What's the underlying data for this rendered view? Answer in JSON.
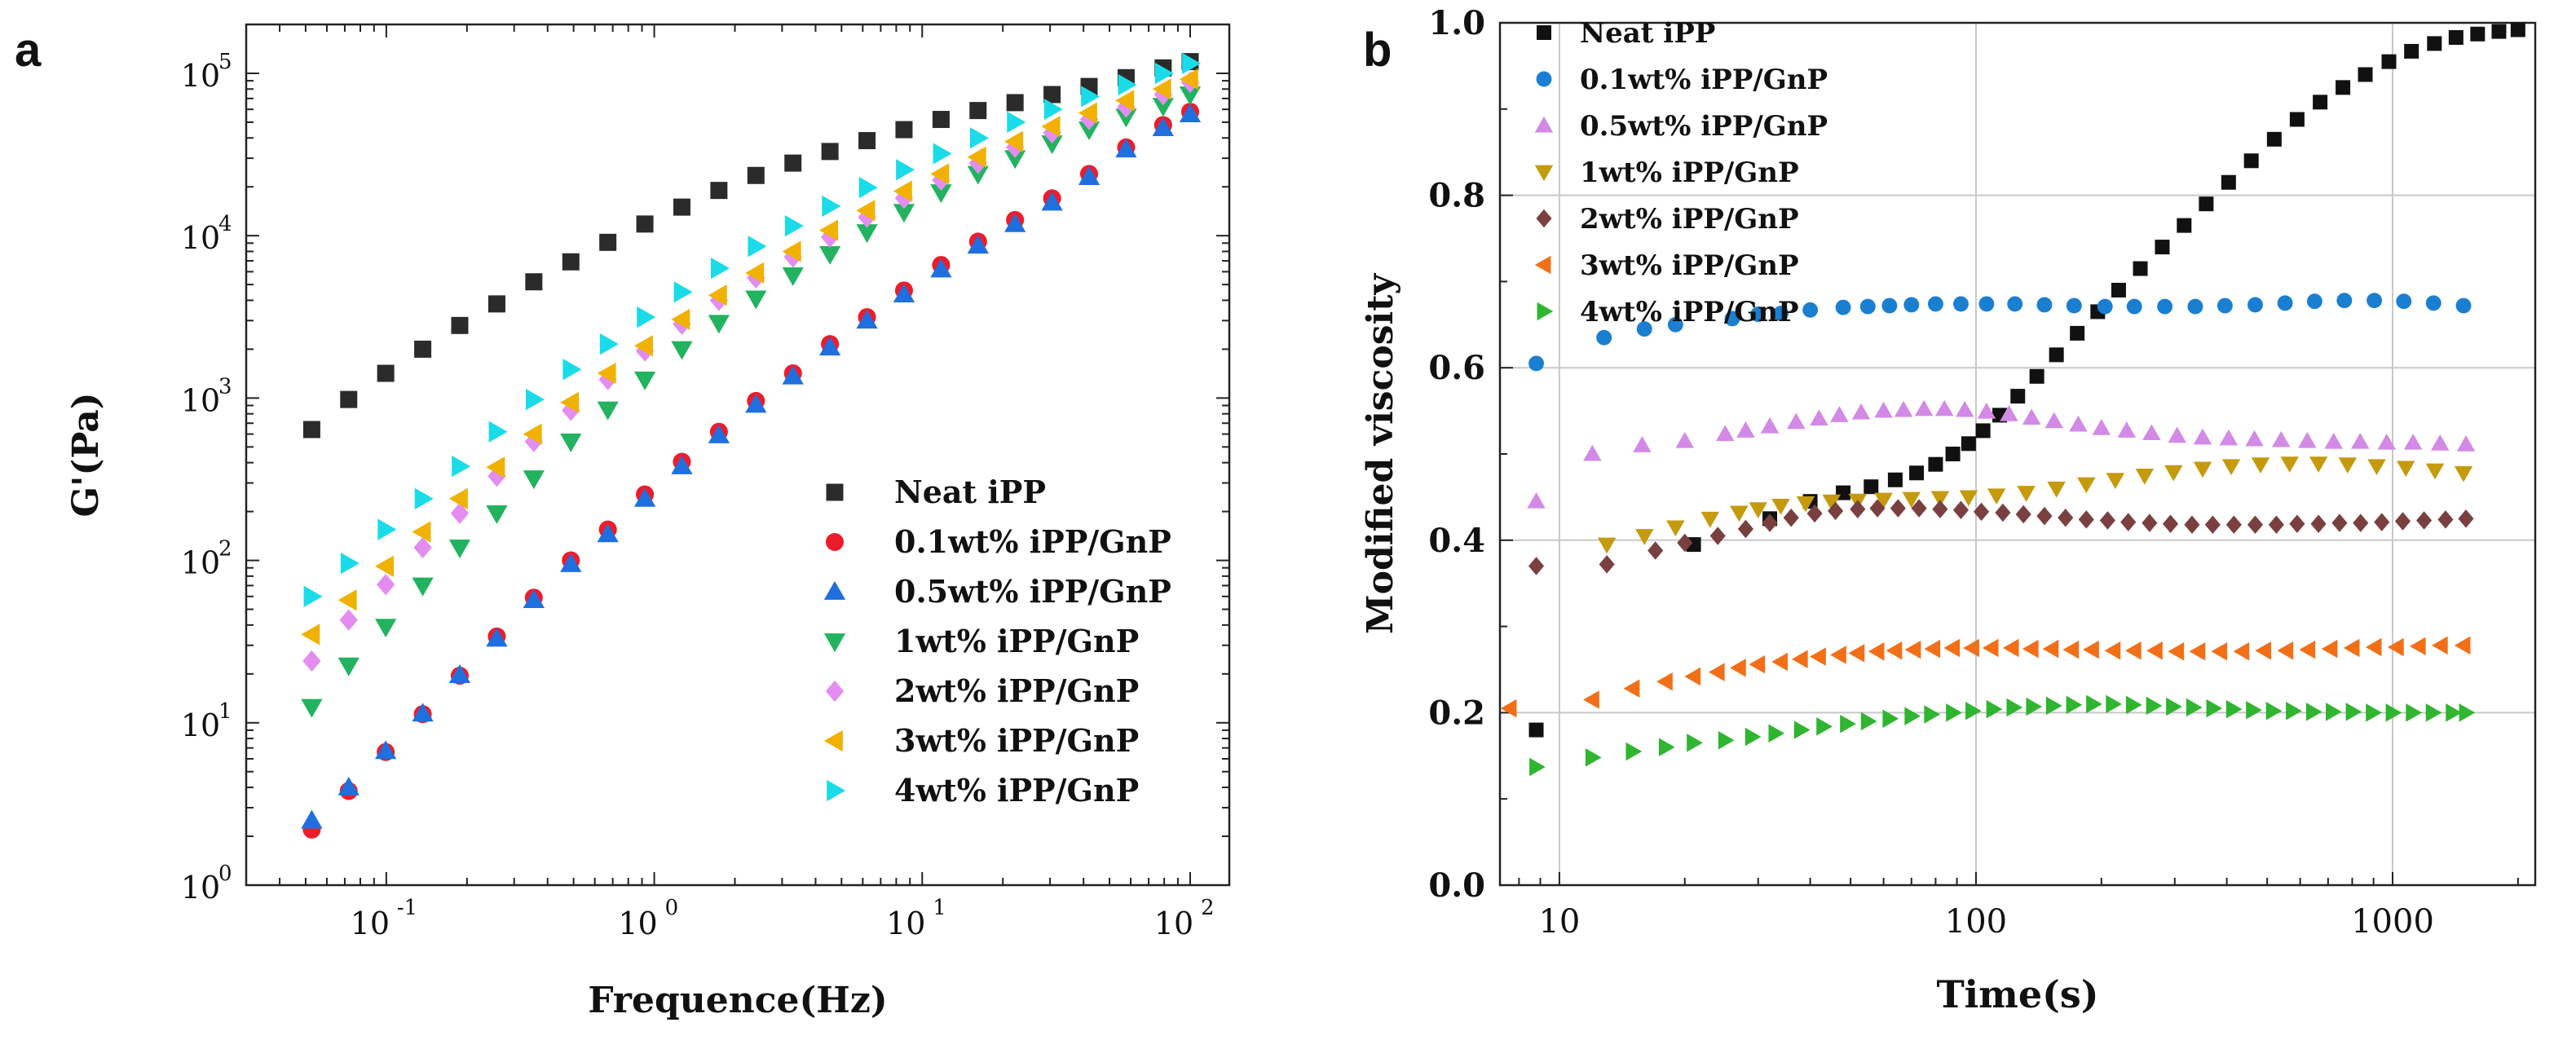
{
  "figure": {
    "panel_a_letter": "a",
    "panel_b_letter": "b"
  },
  "styles": [
    {
      "shape": "square",
      "color": "#2b2b2b"
    },
    {
      "shape": "circle",
      "color": "#ee1c2b"
    },
    {
      "shape": "tri-up",
      "color": "#1f6fde"
    },
    {
      "shape": "tri-down",
      "color": "#21b35f"
    },
    {
      "shape": "diamond",
      "color": "#e48df0"
    },
    {
      "shape": "tri-left",
      "color": "#f1b100"
    },
    {
      "shape": "tri-right",
      "color": "#19dce8"
    }
  ],
  "styles_b": [
    {
      "shape": "square",
      "color": "#111111"
    },
    {
      "shape": "circle",
      "color": "#1b7fd1"
    },
    {
      "shape": "tri-up",
      "color": "#d28ae6"
    },
    {
      "shape": "tri-down",
      "color": "#c59a0d"
    },
    {
      "shape": "diamond",
      "color": "#7a4040"
    },
    {
      "shape": "tri-left",
      "color": "#f26f18"
    },
    {
      "shape": "tri-right",
      "color": "#2fb52f"
    }
  ],
  "chart_data": [
    {
      "type": "scatter",
      "panel": "a",
      "title": "",
      "xlabel": "Frequence(Hz)",
      "ylabel": "G'(Pa)",
      "xscale": "log",
      "yscale": "log",
      "xlim": [
        0.03,
        140
      ],
      "ylim": [
        1,
        200000
      ],
      "xticks": [
        {
          "base": "10",
          "exp": "-1"
        },
        {
          "base": "10",
          "exp": "0"
        },
        {
          "base": "10",
          "exp": "1"
        },
        {
          "base": "10",
          "exp": "2"
        }
      ],
      "yticks": [
        {
          "base": "10",
          "exp": "0"
        },
        {
          "base": "10",
          "exp": "1"
        },
        {
          "base": "10",
          "exp": "2"
        },
        {
          "base": "10",
          "exp": "3"
        },
        {
          "base": "10",
          "exp": "4"
        },
        {
          "base": "10",
          "exp": "5"
        }
      ],
      "grid": false,
      "legend_position": "lower-right",
      "x": [
        0.0527,
        0.0724,
        0.0995,
        0.1368,
        0.188,
        0.2585,
        0.3553,
        0.4884,
        0.6713,
        0.9227,
        1.268,
        1.743,
        2.396,
        3.294,
        4.527,
        6.223,
        8.553,
        11.76,
        16.16,
        22.21,
        30.53,
        41.96,
        57.68,
        79.28,
        100
      ],
      "series": [
        {
          "name": "Neat iPP",
          "values": [
            640,
            980,
            1420,
            2000,
            2800,
            3800,
            5200,
            6900,
            9100,
            11800,
            15000,
            19000,
            23500,
            28000,
            33000,
            38500,
            45000,
            52000,
            59000,
            66000,
            74000,
            83000,
            94000,
            108000,
            118000
          ]
        },
        {
          "name": "0.1wt% iPP/GnP",
          "values": [
            2.2,
            3.8,
            6.6,
            11.3,
            19.5,
            34,
            59,
            100,
            155,
            255,
            405,
            620,
            960,
            1420,
            2150,
            3150,
            4600,
            6600,
            9200,
            12500,
            17000,
            24000,
            35000,
            48000,
            58000
          ]
        },
        {
          "name": "0.5wt% iPP/GnP",
          "values": [
            2.5,
            4.0,
            6.7,
            11.4,
            19.7,
            33,
            57,
            95,
            145,
            240,
            380,
            590,
            910,
            1360,
            2050,
            3000,
            4350,
            6200,
            8700,
            11800,
            16000,
            23000,
            34000,
            46000,
            56000
          ]
        },
        {
          "name": "1wt% iPP/GnP",
          "values": [
            12.5,
            22.5,
            39,
            70,
            120,
            195,
            320,
            540,
            850,
            1300,
            2000,
            2900,
            4100,
            5700,
            7700,
            10500,
            14000,
            18500,
            24000,
            30000,
            37000,
            45000,
            54000,
            63000,
            74000
          ]
        },
        {
          "name": "2wt% iPP/GnP",
          "values": [
            24,
            43,
            71,
            120,
            195,
            330,
            540,
            840,
            1300,
            1950,
            2850,
            4000,
            5500,
            7400,
            9800,
            13000,
            17000,
            22000,
            28000,
            35000,
            43000,
            52000,
            62000,
            74000,
            88000
          ]
        },
        {
          "name": "3wt% iPP/GnP",
          "values": [
            35,
            57,
            92,
            150,
            240,
            375,
            600,
            940,
            1420,
            2100,
            3050,
            4300,
            5900,
            8000,
            10800,
            14300,
            18800,
            24000,
            30500,
            38000,
            47000,
            57000,
            68000,
            80000,
            92000
          ]
        },
        {
          "name": "4wt% iPP/GnP",
          "values": [
            60,
            96,
            155,
            240,
            380,
            620,
            980,
            1500,
            2150,
            3150,
            4500,
            6300,
            8600,
            11500,
            15200,
            19800,
            25500,
            32000,
            40000,
            50000,
            60000,
            72000,
            85000,
            100000,
            115000
          ]
        }
      ]
    },
    {
      "type": "scatter",
      "panel": "b",
      "title": "",
      "xlabel": "Time(s)",
      "ylabel": "Modified viscosity",
      "xscale": "log",
      "yscale": "linear",
      "xlim": [
        7.2,
        2200
      ],
      "ylim": [
        0.0,
        1.0
      ],
      "xticks": [
        {
          "value": 10,
          "label": "10"
        },
        {
          "value": 100,
          "label": "100"
        },
        {
          "value": 1000,
          "label": "1000"
        }
      ],
      "yticks": [
        {
          "value": 0.0,
          "label": "0.0"
        },
        {
          "value": 0.2,
          "label": "0.2"
        },
        {
          "value": 0.4,
          "label": "0.4"
        },
        {
          "value": 0.6,
          "label": "0.6"
        },
        {
          "value": 0.8,
          "label": "0.8"
        },
        {
          "value": 1.0,
          "label": "1.0"
        }
      ],
      "grid": true,
      "legend_position": "top-left",
      "series": [
        {
          "name": "Neat iPP",
          "x": [
            8.8,
            21,
            32,
            40,
            48,
            56,
            64,
            72,
            80,
            88,
            96,
            104,
            114,
            126,
            140,
            156,
            175,
            196,
            220,
            248,
            280,
            316,
            357,
            404,
            458,
            520,
            590,
            670,
            760,
            860,
            980,
            1110,
            1260,
            1420,
            1600,
            1800,
            2000
          ],
          "y": [
            0.18,
            0.395,
            0.425,
            0.445,
            0.455,
            0.462,
            0.47,
            0.478,
            0.488,
            0.5,
            0.512,
            0.527,
            0.545,
            0.567,
            0.59,
            0.615,
            0.64,
            0.665,
            0.69,
            0.715,
            0.74,
            0.765,
            0.79,
            0.815,
            0.84,
            0.865,
            0.888,
            0.908,
            0.925,
            0.94,
            0.955,
            0.967,
            0.976,
            0.983,
            0.987,
            0.99,
            0.992
          ]
        },
        {
          "name": "0.1wt% iPP/GnP",
          "x": [
            8.8,
            12.8,
            16,
            19,
            26,
            30,
            34,
            40,
            48,
            55,
            62,
            70,
            80,
            92,
            106,
            124,
            146,
            172,
            204,
            240,
            284,
            336,
            396,
            468,
            552,
            650,
            766,
            904,
            1064,
            1254,
            1480
          ],
          "y": [
            0.605,
            0.635,
            0.645,
            0.65,
            0.657,
            0.662,
            0.663,
            0.667,
            0.67,
            0.671,
            0.672,
            0.673,
            0.674,
            0.674,
            0.674,
            0.674,
            0.673,
            0.672,
            0.671,
            0.671,
            0.671,
            0.671,
            0.672,
            0.673,
            0.675,
            0.677,
            0.678,
            0.678,
            0.677,
            0.675,
            0.672
          ]
        },
        {
          "name": "0.5wt% iPP/GnP",
          "x": [
            8.8,
            12,
            15.8,
            20,
            25,
            28,
            32,
            37,
            42,
            47,
            53,
            60,
            67,
            75,
            84,
            94,
            106,
            120,
            136,
            154,
            176,
            200,
            230,
            264,
            304,
            350,
            404,
            466,
            540,
            624,
            722,
            836,
            968,
            1120,
            1300,
            1500
          ],
          "y": [
            0.445,
            0.5,
            0.51,
            0.515,
            0.523,
            0.527,
            0.532,
            0.537,
            0.541,
            0.545,
            0.548,
            0.55,
            0.551,
            0.552,
            0.552,
            0.551,
            0.549,
            0.546,
            0.542,
            0.538,
            0.534,
            0.53,
            0.527,
            0.524,
            0.521,
            0.519,
            0.518,
            0.517,
            0.516,
            0.515,
            0.514,
            0.514,
            0.513,
            0.513,
            0.512,
            0.511
          ]
        },
        {
          "name": "1wt% iPP/GnP",
          "x": [
            13,
            16,
            19,
            23,
            27,
            30,
            34,
            39,
            45,
            52,
            60,
            70,
            82,
            96,
            112,
            132,
            156,
            184,
            216,
            254,
            298,
            350,
            410,
            482,
            566,
            664,
            780,
            916,
            1076,
            1264,
            1480
          ],
          "y": [
            0.395,
            0.405,
            0.415,
            0.425,
            0.432,
            0.436,
            0.44,
            0.443,
            0.445,
            0.446,
            0.447,
            0.448,
            0.449,
            0.45,
            0.452,
            0.455,
            0.46,
            0.465,
            0.47,
            0.475,
            0.479,
            0.483,
            0.486,
            0.488,
            0.489,
            0.489,
            0.488,
            0.486,
            0.484,
            0.481,
            0.478
          ]
        },
        {
          "name": "2wt% iPP/GnP",
          "x": [
            8.8,
            13,
            17,
            20,
            24,
            28,
            32,
            36,
            41,
            46,
            52,
            58,
            65,
            73,
            82,
            92,
            103,
            116,
            130,
            146,
            164,
            184,
            207,
            232,
            261,
            293,
            330,
            370,
            416,
            468,
            526,
            590,
            664,
            746,
            838,
            942,
            1058,
            1190,
            1340,
            1500
          ],
          "y": [
            0.37,
            0.372,
            0.388,
            0.397,
            0.405,
            0.413,
            0.42,
            0.426,
            0.431,
            0.434,
            0.436,
            0.437,
            0.437,
            0.437,
            0.436,
            0.435,
            0.433,
            0.432,
            0.43,
            0.428,
            0.426,
            0.424,
            0.423,
            0.421,
            0.42,
            0.419,
            0.418,
            0.418,
            0.418,
            0.418,
            0.418,
            0.419,
            0.419,
            0.42,
            0.42,
            0.421,
            0.422,
            0.423,
            0.424,
            0.425
          ]
        },
        {
          "name": "3wt% iPP/GnP",
          "x": [
            7.6,
            12,
            15,
            18,
            21,
            24,
            27,
            30,
            34,
            38,
            42,
            47,
            52,
            58,
            64,
            71,
            79,
            88,
            98,
            109,
            122,
            136,
            152,
            170,
            190,
            214,
            240,
            270,
            304,
            342,
            386,
            436,
            492,
            556,
            628,
            710,
            802,
            906,
            1024,
            1156,
            1306,
            1480
          ],
          "y": [
            0.205,
            0.215,
            0.228,
            0.236,
            0.242,
            0.247,
            0.252,
            0.256,
            0.259,
            0.262,
            0.265,
            0.267,
            0.269,
            0.271,
            0.272,
            0.273,
            0.274,
            0.275,
            0.275,
            0.275,
            0.275,
            0.274,
            0.274,
            0.273,
            0.273,
            0.272,
            0.272,
            0.272,
            0.271,
            0.271,
            0.271,
            0.271,
            0.272,
            0.272,
            0.273,
            0.274,
            0.275,
            0.276,
            0.276,
            0.277,
            0.278,
            0.278
          ]
        },
        {
          "name": "4wt% iPP/GnP",
          "x": [
            8.8,
            12,
            15,
            18,
            21,
            25,
            29,
            33,
            38,
            43,
            49,
            55,
            62,
            70,
            78,
            88,
            98,
            110,
            123,
            137,
            153,
            171,
            191,
            213,
            238,
            266,
            297,
            332,
            371,
            414,
            462,
            516,
            576,
            644,
            718,
            802,
            896,
            1000,
            1118,
            1248,
            1394,
            1500
          ],
          "y": [
            0.137,
            0.148,
            0.155,
            0.16,
            0.165,
            0.168,
            0.172,
            0.176,
            0.18,
            0.184,
            0.187,
            0.19,
            0.193,
            0.196,
            0.198,
            0.2,
            0.202,
            0.204,
            0.206,
            0.207,
            0.208,
            0.209,
            0.21,
            0.21,
            0.209,
            0.208,
            0.207,
            0.206,
            0.205,
            0.204,
            0.203,
            0.202,
            0.202,
            0.201,
            0.201,
            0.201,
            0.2,
            0.2,
            0.2,
            0.2,
            0.2,
            0.2
          ]
        }
      ]
    }
  ]
}
